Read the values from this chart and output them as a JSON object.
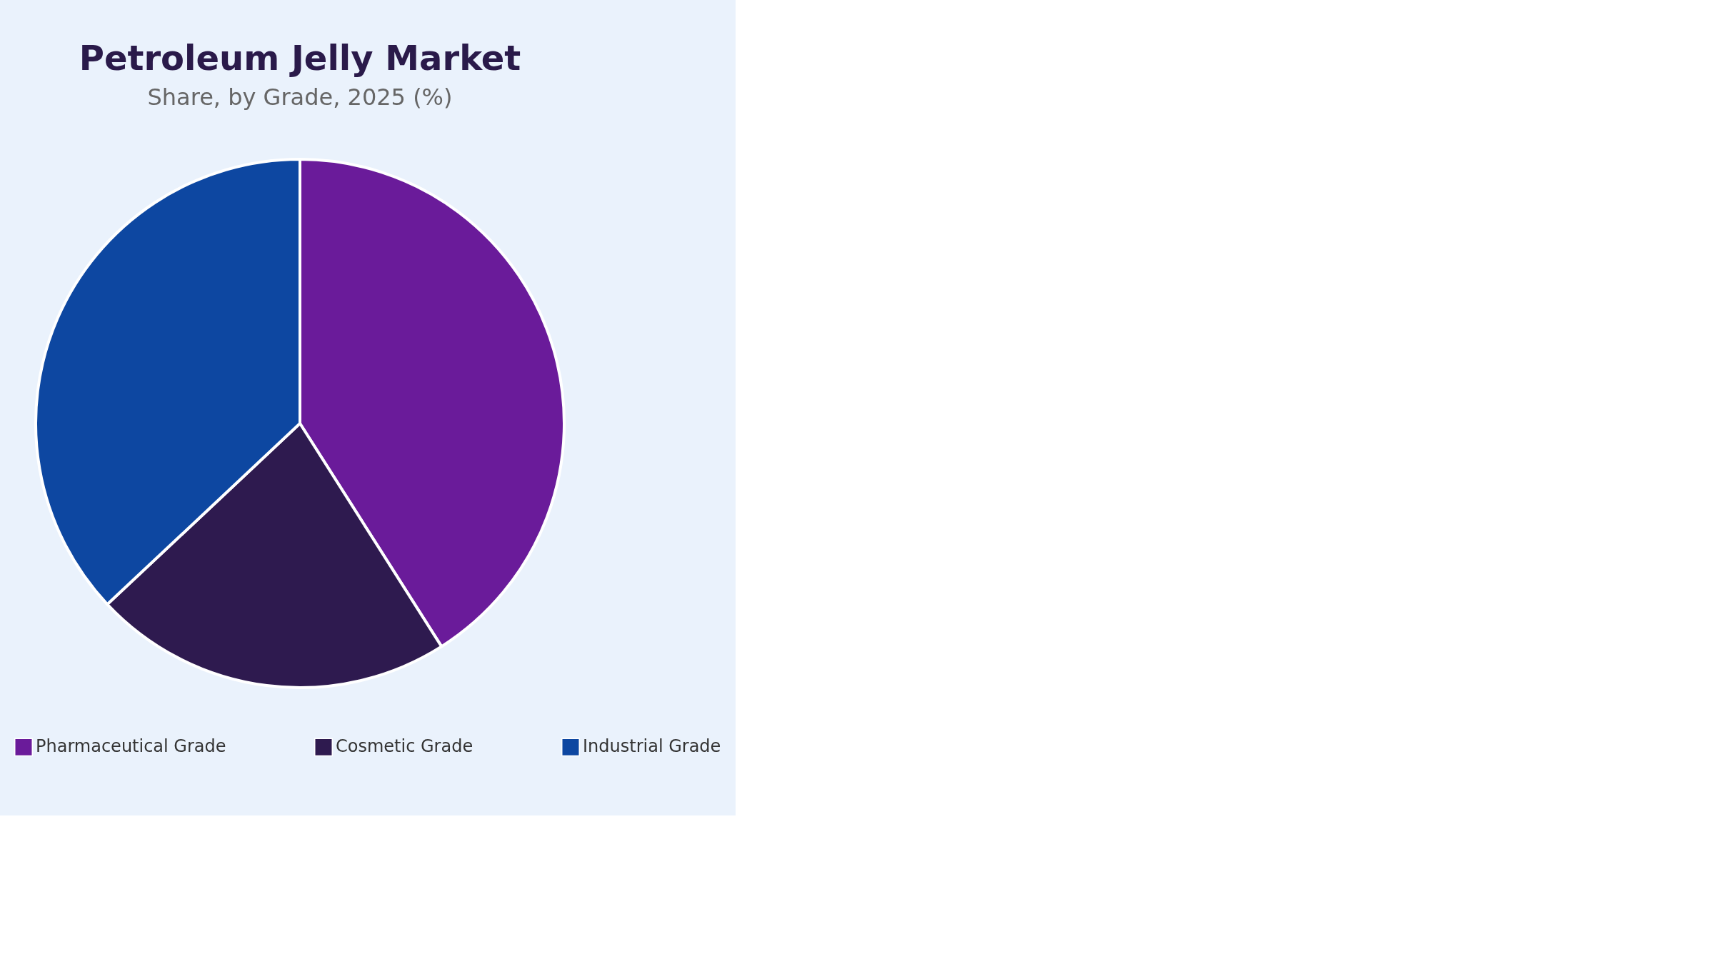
{
  "chart_data": {
    "type": "pie",
    "title": "Petroleum Jelly Market",
    "subtitle": "Share, by Grade, 2025 (%)",
    "categories": [
      "Pharmaceutical Grade",
      "Cosmetic Grade",
      "Industrial Grade"
    ],
    "values": [
      41,
      22,
      37
    ],
    "colors": [
      "#6a1b9a",
      "#2e1a4f",
      "#0d47a1"
    ],
    "legend": "bottom"
  }
}
